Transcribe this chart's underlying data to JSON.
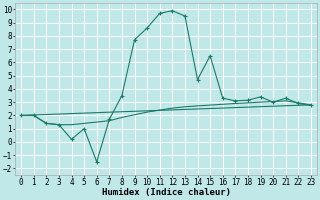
{
  "xlabel": "Humidex (Indice chaleur)",
  "bg_color": "#c0e8e8",
  "grid_color": "#ffffff",
  "line_color": "#1a7a6a",
  "xlim": [
    -0.5,
    23.5
  ],
  "ylim": [
    -2.5,
    10.5
  ],
  "yticks": [
    -2,
    -1,
    0,
    1,
    2,
    3,
    4,
    5,
    6,
    7,
    8,
    9,
    10
  ],
  "xticks": [
    0,
    1,
    2,
    3,
    4,
    5,
    6,
    7,
    8,
    9,
    10,
    11,
    12,
    13,
    14,
    15,
    16,
    17,
    18,
    19,
    20,
    21,
    22,
    23
  ],
  "curve1_x": [
    0,
    1,
    2,
    3,
    4,
    5,
    6,
    7,
    8,
    9,
    10,
    11,
    12,
    13,
    14,
    15,
    16,
    17,
    18,
    19,
    20,
    21,
    22,
    23
  ],
  "curve1_y": [
    2.0,
    2.0,
    1.4,
    1.3,
    0.2,
    1.0,
    -1.5,
    1.7,
    3.5,
    7.7,
    8.6,
    9.7,
    9.9,
    9.5,
    4.7,
    6.5,
    3.3,
    3.1,
    3.15,
    3.4,
    3.0,
    3.3,
    2.9,
    2.75
  ],
  "curve2_x": [
    0,
    23
  ],
  "curve2_y": [
    2.0,
    2.8
  ],
  "curve3_x": [
    0,
    1,
    2,
    3,
    4,
    5,
    6,
    7,
    8,
    9,
    10,
    11,
    12,
    13,
    14,
    15,
    16,
    17,
    18,
    19,
    20,
    21,
    22,
    23
  ],
  "curve3_y": [
    2.0,
    2.0,
    1.4,
    1.3,
    1.3,
    1.4,
    1.5,
    1.6,
    1.85,
    2.05,
    2.25,
    2.4,
    2.55,
    2.65,
    2.72,
    2.78,
    2.84,
    2.9,
    2.95,
    3.0,
    3.05,
    3.1,
    2.95,
    2.8
  ],
  "font_size_label": 6.5,
  "font_size_tick": 5.5
}
